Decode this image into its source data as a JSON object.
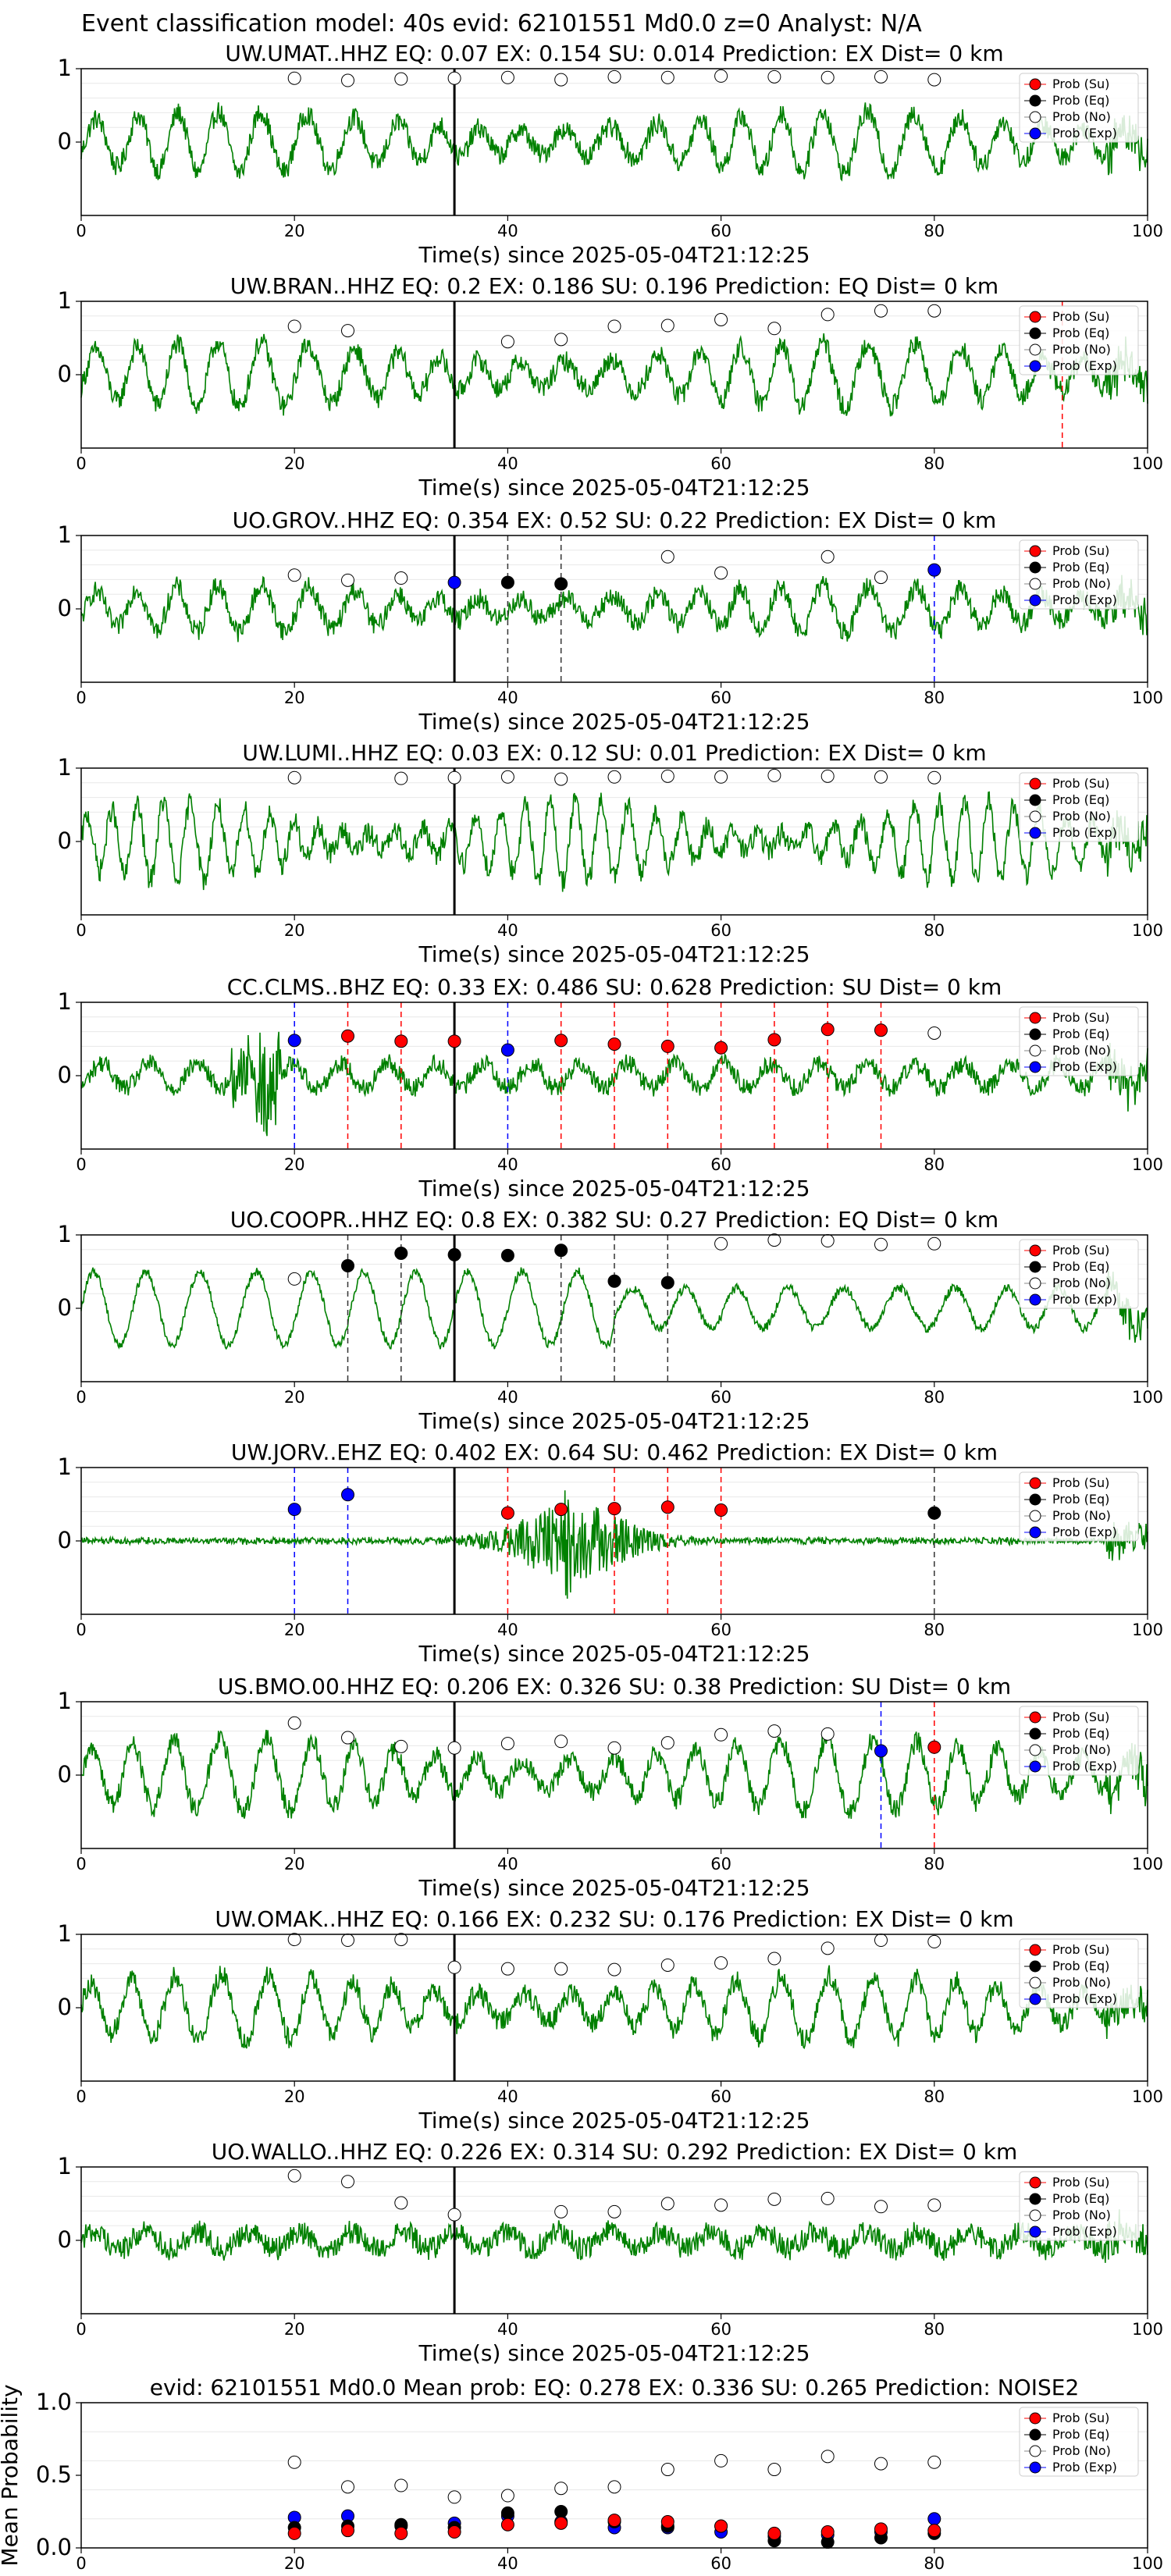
{
  "figure_title": "Event classification model: 40s evid: 62101551 Md0.0 z=0 Analyst: N/A",
  "legend_labels": [
    "Prob (Su)",
    "Prob (Eq)",
    "Prob (No)",
    "Prob (Exp)"
  ],
  "colors": {
    "su": "#ff0000",
    "eq": "#000000",
    "no": "#ffffff",
    "exp": "#0000ff",
    "waveform": "#008000"
  },
  "chart_data": [
    {
      "type": "line",
      "title": "UW.UMAT..HHZ   EQ: 0.07  EX: 0.154  SU: 0.014   Prediction: EX    Dist= 0 km",
      "xlabel": "Time(s) since 2025-05-04T21:12:25",
      "xlim": [
        0,
        100
      ],
      "ylim": [
        -1,
        1
      ],
      "x_ticks": [
        0,
        20,
        40,
        60,
        80,
        100
      ],
      "y_ticks": [
        0,
        1
      ],
      "pick_time": 35,
      "amplitude": 0.42,
      "style": "low",
      "markers": {
        "x": [
          20,
          25,
          30,
          35,
          40,
          45,
          50,
          55,
          60,
          65,
          70,
          75,
          80
        ],
        "su": [],
        "eq": [],
        "exp": [],
        "no": [
          0.87,
          0.84,
          0.86,
          0.87,
          0.88,
          0.85,
          0.89,
          0.88,
          0.9,
          0.89,
          0.88,
          0.89,
          0.85
        ]
      },
      "vlines_red": [],
      "vlines_black": [],
      "vlines_blue": []
    },
    {
      "type": "line",
      "title": "UW.BRAN..HHZ   EQ: 0.2  EX: 0.186  SU: 0.196   Prediction: EQ    Dist= 0 km",
      "xlabel": "Time(s) since 2025-05-04T21:12:25",
      "xlim": [
        0,
        100
      ],
      "ylim": [
        -1,
        1
      ],
      "x_ticks": [
        0,
        20,
        40,
        60,
        80,
        100
      ],
      "y_ticks": [
        0,
        1
      ],
      "pick_time": 35,
      "amplitude": 0.45,
      "style": "low",
      "markers": {
        "x": [
          20,
          25,
          40,
          45,
          50,
          55,
          60,
          65,
          70,
          75,
          80
        ],
        "su": [],
        "eq": [],
        "exp": [],
        "no": [
          0.66,
          0.6,
          0.45,
          0.48,
          0.66,
          0.67,
          0.75,
          0.63,
          0.82,
          0.87,
          0.87
        ]
      },
      "vlines_red": [
        92
      ],
      "vlines_black": [],
      "vlines_blue": []
    },
    {
      "type": "line",
      "title": "UO.GROV..HHZ   EQ: 0.354  EX: 0.52  SU: 0.22   Prediction: EX    Dist= 0 km",
      "xlabel": "Time(s) since 2025-05-04T21:12:25",
      "xlim": [
        0,
        100
      ],
      "ylim": [
        -1,
        1
      ],
      "x_ticks": [
        0,
        20,
        40,
        60,
        80,
        100
      ],
      "y_ticks": [
        0,
        1
      ],
      "pick_time": 35,
      "amplitude": 0.32,
      "style": "low",
      "markers": {
        "x": [
          20,
          25,
          30,
          35,
          40,
          45,
          55,
          60,
          70,
          75,
          80
        ],
        "su": [],
        "exp": [],
        "eq": [
          null,
          null,
          null,
          null,
          0.36,
          0.34,
          null,
          null,
          null,
          null,
          null
        ],
        "no": [
          0.46,
          0.39,
          0.42,
          null,
          null,
          null,
          0.71,
          0.49,
          0.71,
          0.43,
          null
        ]
      },
      "exp_points": [
        [
          35,
          0.36
        ],
        [
          80,
          0.53
        ]
      ],
      "vlines_red": [],
      "vlines_black": [
        40,
        45
      ],
      "vlines_blue": [
        80
      ]
    },
    {
      "type": "line",
      "title": "UW.LUMI..HHZ   EQ: 0.03  EX: 0.12  SU: 0.01   Prediction: EX    Dist= 0 km",
      "xlabel": "Time(s) since 2025-05-04T21:12:25",
      "xlim": [
        0,
        100
      ],
      "ylim": [
        -1,
        1
      ],
      "x_ticks": [
        0,
        20,
        40,
        60,
        80,
        100
      ],
      "y_ticks": [
        0,
        1
      ],
      "pick_time": 35,
      "amplitude": 0.55,
      "style": "high",
      "markers": {
        "x": [
          20,
          30,
          35,
          40,
          45,
          50,
          55,
          60,
          65,
          70,
          75,
          80
        ],
        "su": [],
        "eq": [],
        "exp": [],
        "no": [
          0.87,
          0.86,
          0.87,
          0.88,
          0.85,
          0.88,
          0.89,
          0.88,
          0.9,
          0.89,
          0.88,
          0.87
        ]
      },
      "vlines_red": [],
      "vlines_black": [],
      "vlines_blue": []
    },
    {
      "type": "line",
      "title": "CC.CLMS..BHZ   EQ: 0.33  EX: 0.486  SU: 0.628   Prediction: SU    Dist= 0 km",
      "xlabel": "Time(s) since 2025-05-04T21:12:25",
      "xlim": [
        0,
        100
      ],
      "ylim": [
        -1,
        1
      ],
      "x_ticks": [
        0,
        20,
        40,
        60,
        80,
        100
      ],
      "y_ticks": [
        0,
        1
      ],
      "pick_time": 35,
      "amplitude": 0.28,
      "style": "spiky",
      "markers": {
        "x": [
          25,
          30,
          35,
          45,
          50,
          55,
          60,
          65,
          70,
          75,
          80
        ],
        "eq": [],
        "exp": [],
        "su": [
          0.54,
          0.47,
          0.47,
          0.48,
          0.43,
          0.4,
          0.38,
          0.49,
          0.63,
          0.62,
          null
        ],
        "no": [
          null,
          null,
          null,
          null,
          null,
          null,
          null,
          null,
          null,
          null,
          0.58
        ]
      },
      "exp_points": [
        [
          20,
          0.48
        ],
        [
          40,
          0.35
        ]
      ],
      "vlines_red": [
        25,
        30,
        45,
        50,
        55,
        60,
        65,
        70,
        75
      ],
      "vlines_black": [],
      "vlines_blue": [
        20,
        40
      ]
    },
    {
      "type": "line",
      "title": "UO.COOPR..HHZ   EQ: 0.8  EX: 0.382  SU: 0.27   Prediction: EQ    Dist= 0 km",
      "xlabel": "Time(s) since 2025-05-04T21:12:25",
      "xlim": [
        0,
        100
      ],
      "ylim": [
        -1,
        1
      ],
      "x_ticks": [
        0,
        20,
        40,
        60,
        80,
        100
      ],
      "y_ticks": [
        0,
        1
      ],
      "pick_time": 35,
      "amplitude": 0.5,
      "style": "wave",
      "markers": {
        "x": [
          20,
          25,
          30,
          35,
          40,
          45,
          50,
          55,
          60,
          65,
          70,
          75,
          80
        ],
        "su": [],
        "exp": [],
        "eq": [
          null,
          0.58,
          0.75,
          0.73,
          0.72,
          0.79,
          0.37,
          0.35,
          null,
          null,
          null,
          null,
          null
        ],
        "no": [
          0.4,
          null,
          null,
          null,
          null,
          null,
          null,
          null,
          0.88,
          0.93,
          0.92,
          0.87,
          0.88
        ]
      },
      "vlines_red": [],
      "vlines_black": [
        25,
        30,
        45,
        50,
        55
      ],
      "vlines_blue": []
    },
    {
      "type": "line",
      "title": "UW.JORV..EHZ   EQ: 0.402  EX: 0.64  SU: 0.462   Prediction: EX    Dist= 0 km",
      "xlabel": "Time(s) since 2025-05-04T21:12:25",
      "xlim": [
        0,
        100
      ],
      "ylim": [
        -1,
        1
      ],
      "x_ticks": [
        0,
        20,
        40,
        60,
        80,
        100
      ],
      "y_ticks": [
        0,
        1
      ],
      "pick_time": 35,
      "amplitude": 0.08,
      "style": "burst",
      "markers": {
        "x": [
          40,
          45,
          50,
          55,
          60,
          80
        ],
        "eq": [
          null,
          null,
          null,
          null,
          null,
          0.38
        ],
        "no": [],
        "exp": [],
        "su": [
          0.38,
          0.43,
          0.44,
          0.46,
          0.42,
          null
        ]
      },
      "exp_points": [
        [
          20,
          0.43
        ],
        [
          25,
          0.63
        ]
      ],
      "vlines_red": [
        40,
        50,
        55,
        60
      ],
      "vlines_black": [
        80
      ],
      "vlines_blue": [
        20,
        25
      ]
    },
    {
      "type": "line",
      "title": "US.BMO.00.HHZ   EQ: 0.206  EX: 0.326  SU: 0.38   Prediction: SU    Dist= 0 km",
      "xlabel": "Time(s) since 2025-05-04T21:12:25",
      "xlim": [
        0,
        100
      ],
      "ylim": [
        -1,
        1
      ],
      "x_ticks": [
        0,
        20,
        40,
        60,
        80,
        100
      ],
      "y_ticks": [
        0,
        1
      ],
      "pick_time": 35,
      "amplitude": 0.5,
      "style": "low",
      "markers": {
        "x": [
          20,
          25,
          30,
          35,
          40,
          45,
          50,
          55,
          60,
          65,
          70,
          80
        ],
        "eq": [],
        "exp": [],
        "su": [
          null,
          null,
          null,
          null,
          null,
          null,
          null,
          null,
          null,
          null,
          null,
          0.38
        ],
        "no": [
          0.71,
          0.51,
          0.39,
          0.37,
          0.43,
          0.46,
          0.37,
          0.44,
          0.55,
          0.6,
          0.56,
          null
        ]
      },
      "exp_points": [
        [
          75,
          0.33
        ]
      ],
      "vlines_red": [
        80
      ],
      "vlines_black": [],
      "vlines_blue": [
        75
      ]
    },
    {
      "type": "line",
      "title": "UW.OMAK..HHZ   EQ: 0.166  EX: 0.232  SU: 0.176   Prediction: EX    Dist= 0 km",
      "xlabel": "Time(s) since 2025-05-04T21:12:25",
      "xlim": [
        0,
        100
      ],
      "ylim": [
        -1,
        1
      ],
      "x_ticks": [
        0,
        20,
        40,
        60,
        80,
        100
      ],
      "y_ticks": [
        0,
        1
      ],
      "pick_time": 35,
      "amplitude": 0.45,
      "style": "low",
      "markers": {
        "x": [
          20,
          25,
          30,
          35,
          40,
          45,
          50,
          55,
          60,
          65,
          70,
          75,
          80
        ],
        "su": [],
        "eq": [],
        "exp": [],
        "no": [
          0.93,
          0.92,
          0.93,
          0.55,
          0.53,
          0.53,
          0.52,
          0.58,
          0.61,
          0.67,
          0.81,
          0.92,
          0.9
        ]
      },
      "vlines_red": [],
      "vlines_black": [],
      "vlines_blue": []
    },
    {
      "type": "line",
      "title": "UO.WALLO..HHZ   EQ: 0.226  EX: 0.314  SU: 0.292   Prediction: EX    Dist= 0 km",
      "xlabel": "Time(s) since 2025-05-04T21:12:25",
      "xlim": [
        0,
        100
      ],
      "ylim": [
        -1,
        1
      ],
      "x_ticks": [
        0,
        20,
        40,
        60,
        80,
        100
      ],
      "y_ticks": [
        0,
        1
      ],
      "pick_time": 35,
      "amplitude": 0.2,
      "style": "noise",
      "markers": {
        "x": [
          20,
          25,
          30,
          35,
          45,
          50,
          55,
          60,
          65,
          70,
          75,
          80
        ],
        "su": [],
        "eq": [],
        "exp": [],
        "no": [
          0.88,
          0.8,
          0.51,
          0.35,
          0.39,
          0.39,
          0.5,
          0.48,
          0.56,
          0.57,
          0.46,
          0.48
        ]
      },
      "vlines_red": [],
      "vlines_black": [],
      "vlines_blue": []
    },
    {
      "type": "scatter",
      "title": "evid: 62101551  Md0.0   Mean prob:   EQ: 0.278  EX: 0.336  SU: 0.265   Prediction: NOISE2",
      "xlabel": "",
      "ylabel": "Mean Probability",
      "xlim": [
        0,
        100
      ],
      "ylim": [
        0,
        1
      ],
      "x_ticks": [
        0,
        20,
        40,
        60,
        80,
        100
      ],
      "y_ticks": [
        0.0,
        0.5,
        1.0
      ],
      "y_tick_labels": [
        "0.0",
        "0.5",
        "1.0"
      ],
      "markers": {
        "x": [
          20,
          25,
          30,
          35,
          40,
          45,
          50,
          55,
          60,
          65,
          70,
          75,
          80
        ],
        "no": [
          0.59,
          0.42,
          0.43,
          0.35,
          0.36,
          0.41,
          0.42,
          0.54,
          0.6,
          0.54,
          0.63,
          0.58,
          0.59
        ],
        "exp": [
          0.21,
          0.22,
          0.15,
          0.17,
          0.22,
          0.18,
          0.14,
          0.14,
          0.11,
          0.08,
          0.09,
          0.11,
          0.2
        ],
        "eq": [
          0.14,
          0.15,
          0.16,
          0.14,
          0.24,
          0.25,
          0.18,
          0.15,
          0.15,
          0.05,
          0.04,
          0.07,
          0.1
        ],
        "su": [
          0.1,
          0.12,
          0.1,
          0.11,
          0.16,
          0.17,
          0.19,
          0.18,
          0.15,
          0.1,
          0.11,
          0.13,
          0.12
        ]
      },
      "vlines_red": [],
      "vlines_black": [],
      "vlines_blue": []
    }
  ]
}
